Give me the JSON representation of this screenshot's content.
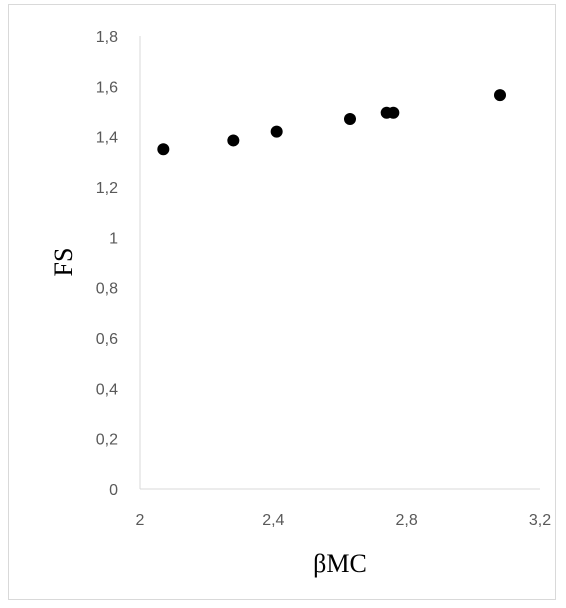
{
  "chart_data": {
    "type": "scatter",
    "title": "",
    "xlabel": "βMC",
    "ylabel": "FS",
    "xlim": [
      2,
      3.2
    ],
    "ylim": [
      0,
      1.8
    ],
    "x_ticks": [
      "2",
      "2,4",
      "2,8",
      "3,2"
    ],
    "x_tick_values": [
      2,
      2.4,
      2.8,
      3.2
    ],
    "y_ticks": [
      "0",
      "0,2",
      "0,4",
      "0,6",
      "0,8",
      "1",
      "1,2",
      "1,4",
      "1,6",
      "1,8"
    ],
    "y_tick_values": [
      0,
      0.2,
      0.4,
      0.6,
      0.8,
      1.0,
      1.2,
      1.4,
      1.6,
      1.8
    ],
    "grid": false,
    "legend": "none",
    "marker_color": "#000000",
    "axis_color": "#d9d9d9",
    "points": [
      {
        "x": 2.07,
        "y": 1.35
      },
      {
        "x": 2.28,
        "y": 1.385
      },
      {
        "x": 2.41,
        "y": 1.42
      },
      {
        "x": 2.63,
        "y": 1.47
      },
      {
        "x": 2.74,
        "y": 1.495
      },
      {
        "x": 2.76,
        "y": 1.495
      },
      {
        "x": 3.08,
        "y": 1.565
      }
    ]
  }
}
